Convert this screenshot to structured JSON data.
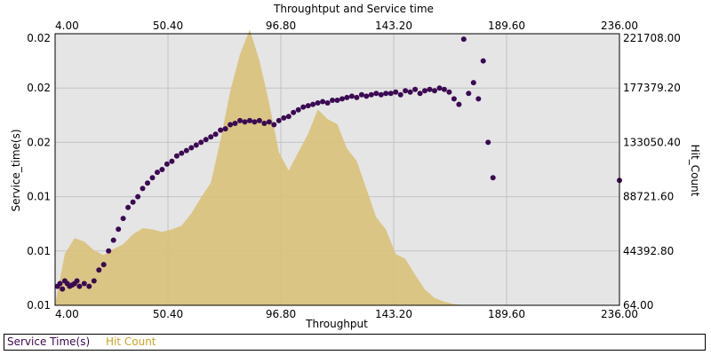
{
  "chart_data": {
    "type": "scatter+area",
    "title": "Throughtput and Service time",
    "xlabel": "Throughput",
    "ylabel_left": "Service_time(s)",
    "ylabel_right": "Hit_Count",
    "x_ticks": [
      "4.00",
      "50.40",
      "96.80",
      "143.20",
      "189.60",
      "236.00"
    ],
    "x_tick_values": [
      4.0,
      50.4,
      96.8,
      143.2,
      189.6,
      236.0
    ],
    "xlim": [
      4.0,
      236.0
    ],
    "y_left_ticks": [
      "0.01",
      "0.01",
      "0.01",
      "0.02",
      "0.02",
      "0.02"
    ],
    "y_right_ticks": [
      "64.00",
      "44392.80",
      "88721.60",
      "133050.40",
      "177379.20",
      "221708.00"
    ],
    "y_right_tick_values": [
      64.0,
      44392.8,
      88721.6,
      133050.4,
      177379.2,
      221708.0
    ],
    "y_right_lim": [
      64.0,
      221708.0
    ],
    "y_left_lim": [
      0.0,
      1.0
    ],
    "grid": true,
    "colors": {
      "service_time": "#3b0a52",
      "hit_count": "#d9c17a",
      "plot_bg": "#e5e5e5",
      "grid": "#c4c4c4"
    },
    "hit_count_series": {
      "name": "Hit Count",
      "x": [
        4,
        8,
        12,
        16,
        20,
        24,
        28,
        32,
        36,
        40,
        44,
        48,
        52,
        56,
        60,
        64,
        68,
        72,
        76,
        80,
        84,
        88,
        92,
        96,
        100,
        104,
        108,
        112,
        116,
        120,
        124,
        128,
        132,
        136,
        140,
        144,
        148,
        152,
        156,
        160,
        164,
        168,
        172
      ],
      "y": [
        500,
        42000,
        55000,
        52000,
        45000,
        41000,
        46000,
        50000,
        58000,
        63000,
        62000,
        60000,
        62000,
        65000,
        75000,
        88000,
        100000,
        135000,
        175000,
        205000,
        225000,
        200000,
        165000,
        125000,
        110000,
        125000,
        140000,
        160000,
        152000,
        148000,
        128000,
        118000,
        95000,
        72000,
        62000,
        42000,
        38000,
        25000,
        13000,
        6000,
        3000,
        1000,
        200
      ]
    },
    "service_time_series": {
      "name": "Service Time(s)",
      "x": [
        5,
        6,
        7,
        8,
        9,
        10,
        11,
        12,
        13,
        14,
        16,
        18,
        20,
        22,
        24,
        26,
        28,
        30,
        32,
        34,
        36,
        38,
        40,
        42,
        44,
        46,
        48,
        50,
        52,
        54,
        56,
        58,
        60,
        62,
        64,
        66,
        68,
        70,
        72,
        74,
        76,
        78,
        80,
        82,
        84,
        86,
        88,
        90,
        92,
        94,
        96,
        98,
        100,
        102,
        104,
        106,
        108,
        110,
        112,
        114,
        116,
        118,
        120,
        122,
        124,
        126,
        128,
        130,
        132,
        134,
        136,
        138,
        140,
        142,
        144,
        146,
        148,
        150,
        152,
        154,
        156,
        158,
        160,
        162,
        164,
        166,
        168,
        170,
        172,
        174,
        176,
        178,
        180,
        182,
        184,
        236
      ],
      "y": [
        0.07,
        0.08,
        0.06,
        0.09,
        0.08,
        0.07,
        0.075,
        0.08,
        0.09,
        0.07,
        0.08,
        0.07,
        0.09,
        0.13,
        0.15,
        0.2,
        0.24,
        0.28,
        0.32,
        0.36,
        0.38,
        0.4,
        0.43,
        0.45,
        0.47,
        0.49,
        0.5,
        0.52,
        0.53,
        0.55,
        0.56,
        0.57,
        0.58,
        0.59,
        0.6,
        0.61,
        0.62,
        0.63,
        0.645,
        0.65,
        0.665,
        0.67,
        0.68,
        0.675,
        0.68,
        0.675,
        0.68,
        0.67,
        0.675,
        0.665,
        0.68,
        0.69,
        0.695,
        0.71,
        0.72,
        0.73,
        0.735,
        0.74,
        0.745,
        0.75,
        0.745,
        0.755,
        0.755,
        0.76,
        0.765,
        0.77,
        0.765,
        0.775,
        0.77,
        0.775,
        0.78,
        0.775,
        0.78,
        0.78,
        0.785,
        0.775,
        0.79,
        0.785,
        0.795,
        0.78,
        0.79,
        0.795,
        0.79,
        0.8,
        0.795,
        0.785,
        0.76,
        0.74,
        0.98,
        0.78,
        0.82,
        0.76,
        0.9,
        0.6,
        0.47,
        0.46
      ]
    },
    "legend": [
      {
        "label": "Service Time(s)",
        "color": "#3b0a52"
      },
      {
        "label": "Hit Count",
        "color": "#c9a227"
      }
    ]
  }
}
